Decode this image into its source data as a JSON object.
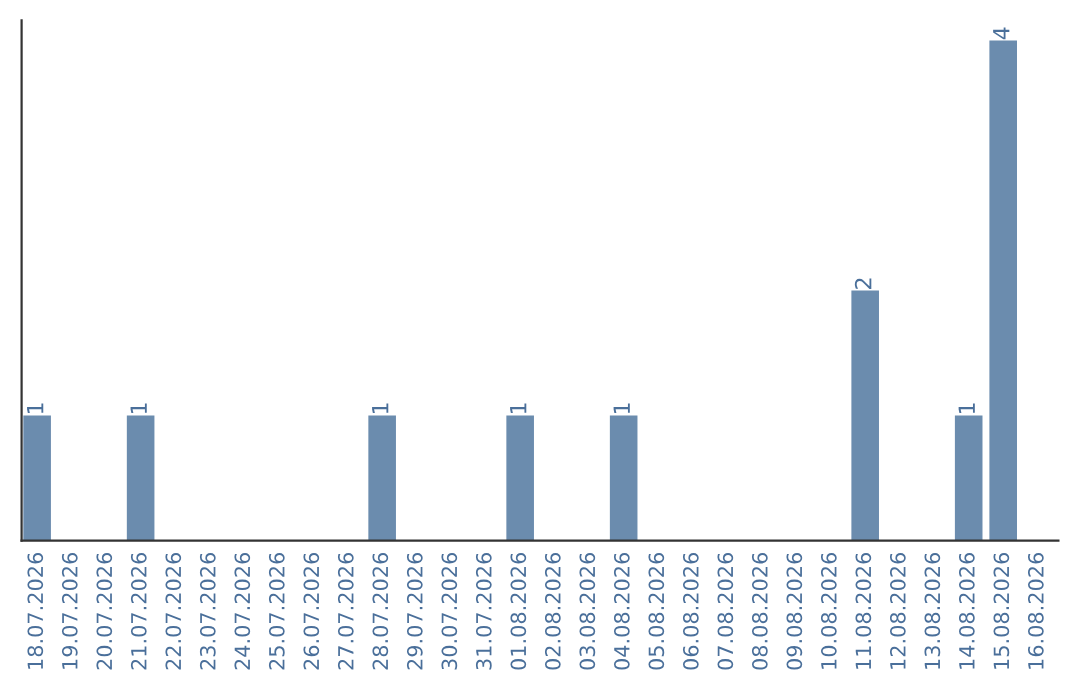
{
  "chart_data": {
    "type": "bar",
    "categories": [
      "18.07.2026",
      "19.07.2026",
      "20.07.2026",
      "21.07.2026",
      "22.07.2026",
      "23.07.2026",
      "24.07.2026",
      "25.07.2026",
      "26.07.2026",
      "27.07.2026",
      "28.07.2026",
      "29.07.2026",
      "30.07.2026",
      "31.07.2026",
      "01.08.2026",
      "02.08.2026",
      "03.08.2026",
      "04.08.2026",
      "05.08.2026",
      "06.08.2026",
      "07.08.2026",
      "08.08.2026",
      "09.08.2026",
      "10.08.2026",
      "11.08.2026",
      "12.08.2026",
      "13.08.2026",
      "14.08.2026",
      "15.08.2026",
      "16.08.2026"
    ],
    "values": [
      1,
      0,
      0,
      1,
      0,
      0,
      0,
      0,
      0,
      0,
      1,
      0,
      0,
      0,
      1,
      0,
      0,
      1,
      0,
      0,
      0,
      0,
      0,
      0,
      2,
      0,
      0,
      1,
      4,
      0
    ],
    "value_labels": [
      "1",
      null,
      null,
      "1",
      null,
      null,
      null,
      null,
      null,
      null,
      "1",
      null,
      null,
      null,
      "1",
      null,
      null,
      "1",
      null,
      null,
      null,
      null,
      null,
      null,
      "2",
      null,
      null,
      "1",
      "4",
      null
    ],
    "color": "#6b8cae",
    "grid": false,
    "legend": false,
    "tick_labels": "x"
  }
}
